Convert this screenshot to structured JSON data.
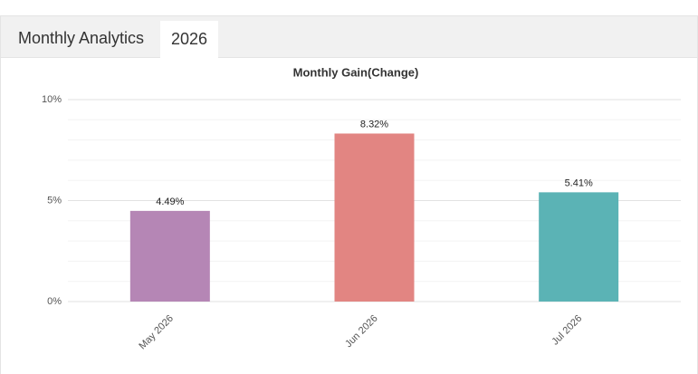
{
  "header": {
    "title": "Monthly Analytics",
    "tabs": [
      "2026"
    ]
  },
  "chart_data": {
    "type": "bar",
    "title": "Monthly Gain(Change)",
    "categories": [
      "May 2026",
      "Jun 2026",
      "Jul 2026"
    ],
    "values": [
      4.49,
      8.32,
      5.41
    ],
    "value_labels": [
      "4.49%",
      "8.32%",
      "5.41%"
    ],
    "colors": [
      "#b586b5",
      "#e28582",
      "#5bb3b5"
    ],
    "ylim": [
      0,
      10
    ],
    "yticks": [
      {
        "value": 0,
        "label": "0%"
      },
      {
        "value": 5,
        "label": "5%"
      },
      {
        "value": 10,
        "label": "10%"
      }
    ],
    "minor_yticks": [
      1,
      2,
      3,
      4,
      6,
      7,
      8,
      9
    ],
    "grid": true
  }
}
